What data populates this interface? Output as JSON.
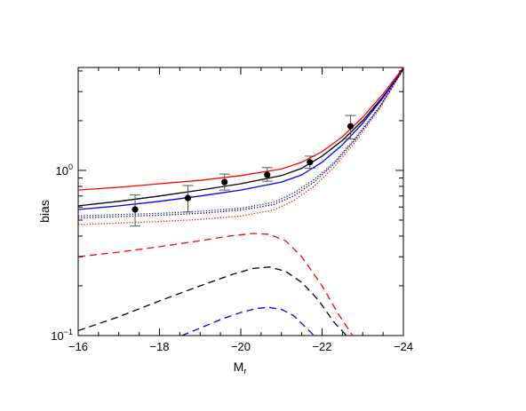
{
  "chart_data": {
    "type": "line",
    "title": "",
    "xlabel_main": "M",
    "xlabel_sub": "r",
    "ylabel": "bias",
    "xlim": [
      -16,
      -24
    ],
    "ylim": [
      0.1,
      4.2
    ],
    "yscale": "log",
    "x_ticks": [
      {
        "value": -16,
        "label": "−16"
      },
      {
        "value": -18,
        "label": "−18"
      },
      {
        "value": -20,
        "label": "−20"
      },
      {
        "value": -22,
        "label": "−22"
      },
      {
        "value": -24,
        "label": "−24"
      }
    ],
    "y_ticks": [
      {
        "value": 0.1,
        "base": "10",
        "exp": "−1"
      },
      {
        "value": 1.0,
        "base": "10",
        "exp": "0"
      }
    ],
    "points": {
      "x": [
        -17.4,
        -18.7,
        -19.6,
        -20.65,
        -21.7,
        -22.7
      ],
      "y": [
        0.58,
        0.68,
        0.85,
        0.94,
        1.12,
        1.85
      ],
      "yerr_low": [
        0.46,
        0.56,
        0.76,
        0.86,
        1.03,
        1.55
      ],
      "yerr_high": [
        0.71,
        0.81,
        0.95,
        1.04,
        1.22,
        2.15
      ]
    },
    "series": [
      {
        "color": "#ff0000",
        "style": "solid",
        "x": [
          -16,
          -17,
          -18,
          -19,
          -20,
          -21,
          -21.5,
          -22,
          -22.5,
          -23,
          -23.5,
          -24
        ],
        "y": [
          0.76,
          0.79,
          0.83,
          0.87,
          0.93,
          1.02,
          1.12,
          1.3,
          1.6,
          2.1,
          2.9,
          4.2
        ]
      },
      {
        "color": "#000000",
        "style": "solid",
        "x": [
          -16,
          -17,
          -18,
          -19,
          -20,
          -21,
          -21.5,
          -22,
          -22.5,
          -23,
          -23.5,
          -24
        ],
        "y": [
          0.61,
          0.65,
          0.7,
          0.76,
          0.83,
          0.93,
          1.03,
          1.22,
          1.52,
          2.0,
          2.8,
          4.1
        ]
      },
      {
        "color": "#0000ff",
        "style": "solid",
        "x": [
          -16,
          -17,
          -18,
          -19,
          -20,
          -21,
          -21.5,
          -22,
          -22.5,
          -23,
          -23.5,
          -24
        ],
        "y": [
          0.58,
          0.61,
          0.65,
          0.7,
          0.76,
          0.85,
          0.94,
          1.12,
          1.43,
          1.93,
          2.75,
          4.1
        ]
      },
      {
        "color": "#0000ff",
        "style": "dotted",
        "x": [
          -16,
          -17,
          -18,
          -19,
          -20,
          -20.8,
          -21.3,
          -21.8,
          -22.3,
          -22.8,
          -23.4,
          -24
        ],
        "y": [
          0.53,
          0.54,
          0.55,
          0.565,
          0.59,
          0.64,
          0.73,
          0.88,
          1.12,
          1.55,
          2.4,
          4.1
        ]
      },
      {
        "color": "#000000",
        "style": "dotted",
        "x": [
          -16,
          -17,
          -18,
          -19,
          -20,
          -20.8,
          -21.3,
          -21.8,
          -22.3,
          -22.8,
          -23.4,
          -24
        ],
        "y": [
          0.515,
          0.525,
          0.535,
          0.55,
          0.575,
          0.62,
          0.7,
          0.85,
          1.1,
          1.52,
          2.38,
          4.1
        ]
      },
      {
        "color": "#ff0000",
        "style": "dotted",
        "x": [
          -16,
          -17,
          -18,
          -19,
          -20,
          -20.8,
          -21.3,
          -21.8,
          -22.3,
          -22.8,
          -23.4,
          -24
        ],
        "y": [
          0.47,
          0.48,
          0.49,
          0.505,
          0.53,
          0.575,
          0.655,
          0.8,
          1.05,
          1.47,
          2.33,
          4.1
        ]
      },
      {
        "color": "#ff0000",
        "style": "dashed",
        "x": [
          -16,
          -17,
          -18,
          -19,
          -19.7,
          -20.3,
          -20.7,
          -21.1,
          -21.5,
          -22,
          -22.4,
          -22.75
        ],
        "y": [
          0.3,
          0.32,
          0.345,
          0.375,
          0.4,
          0.415,
          0.41,
          0.375,
          0.3,
          0.2,
          0.135,
          0.1
        ]
      },
      {
        "color": "#000000",
        "style": "dashed",
        "x": [
          -16,
          -17,
          -18,
          -19,
          -19.8,
          -20.3,
          -20.7,
          -21.1,
          -21.5,
          -21.9,
          -22.3,
          -22.6
        ],
        "y": [
          0.107,
          0.13,
          0.162,
          0.2,
          0.235,
          0.255,
          0.26,
          0.245,
          0.21,
          0.165,
          0.12,
          0.1
        ]
      },
      {
        "color": "#0000ff",
        "style": "dashed",
        "x": [
          -18.55,
          -19,
          -19.5,
          -20,
          -20.4,
          -20.7,
          -21,
          -21.3,
          -21.6,
          -21.8
        ],
        "y": [
          0.1,
          0.111,
          0.125,
          0.138,
          0.146,
          0.148,
          0.144,
          0.132,
          0.112,
          0.1
        ]
      }
    ]
  }
}
